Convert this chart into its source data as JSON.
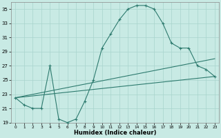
{
  "xlabel": "Humidex (Indice chaleur)",
  "background_color": "#c8eae4",
  "line_color": "#2d7a6e",
  "grid_color": "#a8d4cc",
  "line1_x": [
    0,
    1,
    2,
    3,
    4,
    5,
    6,
    7,
    8,
    9,
    10,
    11,
    12,
    13,
    14,
    15,
    16,
    17,
    18,
    19,
    20,
    21,
    22,
    23
  ],
  "line1_y": [
    22.5,
    21.5,
    21.0,
    21.0,
    27.0,
    19.5,
    19.0,
    19.5,
    22.0,
    25.0,
    29.5,
    31.5,
    33.5,
    35.0,
    35.5,
    35.5,
    35.0,
    33.0,
    30.2,
    29.5,
    29.5,
    27.0,
    26.5,
    25.5
  ],
  "line2_x": [
    0,
    23
  ],
  "line2_y": [
    22.5,
    28.0
  ],
  "line3_x": [
    0,
    23
  ],
  "line3_y": [
    22.5,
    25.5
  ],
  "xlim": [
    -0.5,
    23.5
  ],
  "ylim": [
    19,
    36
  ],
  "yticks": [
    19,
    21,
    23,
    25,
    27,
    29,
    31,
    33,
    35
  ],
  "xticks": [
    0,
    1,
    2,
    3,
    4,
    5,
    6,
    7,
    8,
    9,
    10,
    11,
    12,
    13,
    14,
    15,
    16,
    17,
    18,
    19,
    20,
    21,
    22,
    23
  ]
}
